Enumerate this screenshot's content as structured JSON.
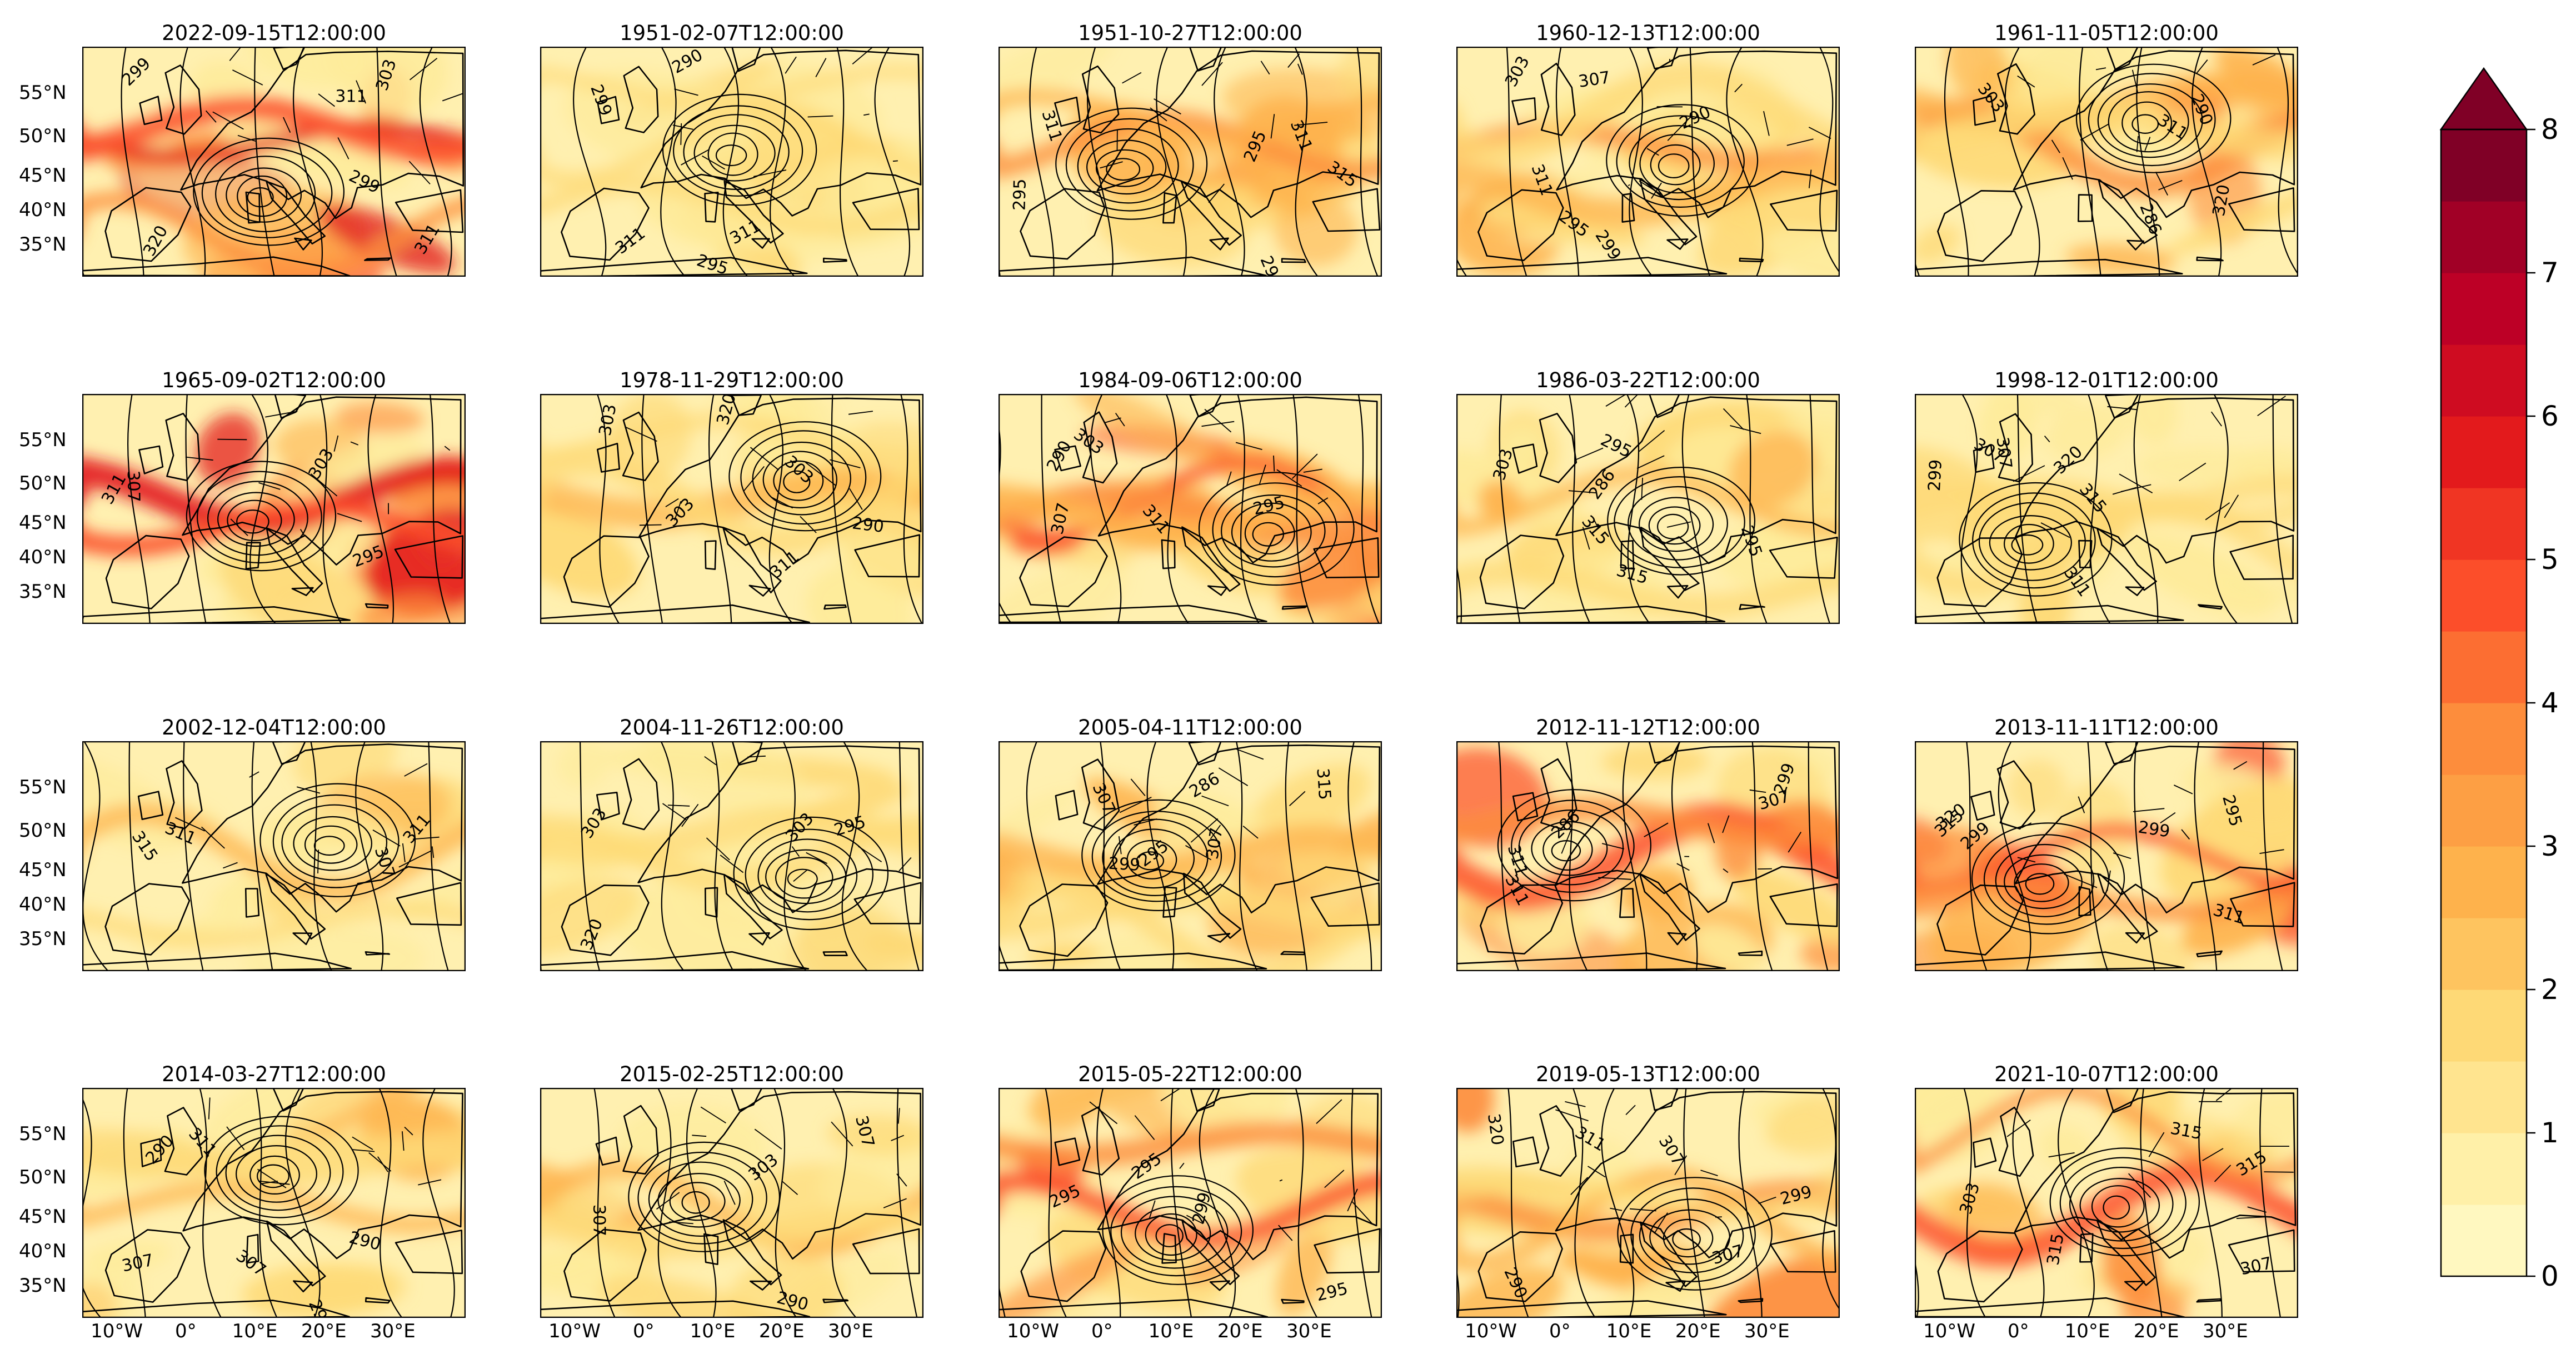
{
  "figure": {
    "panels": [
      {
        "title": "2022-09-15T12:00:00",
        "intensity": 0.85
      },
      {
        "title": "1951-02-07T12:00:00",
        "intensity": 0.35
      },
      {
        "title": "1951-10-27T12:00:00",
        "intensity": 0.6
      },
      {
        "title": "1960-12-13T12:00:00",
        "intensity": 0.5
      },
      {
        "title": "1961-11-05T12:00:00",
        "intensity": 0.55
      },
      {
        "title": "1965-09-02T12:00:00",
        "intensity": 0.85
      },
      {
        "title": "1978-11-29T12:00:00",
        "intensity": 0.4
      },
      {
        "title": "1984-09-06T12:00:00",
        "intensity": 0.75
      },
      {
        "title": "1986-03-22T12:00:00",
        "intensity": 0.4
      },
      {
        "title": "1998-12-01T12:00:00",
        "intensity": 0.3
      },
      {
        "title": "2002-12-04T12:00:00",
        "intensity": 0.4
      },
      {
        "title": "2004-11-26T12:00:00",
        "intensity": 0.35
      },
      {
        "title": "2005-04-11T12:00:00",
        "intensity": 0.45
      },
      {
        "title": "2012-11-12T12:00:00",
        "intensity": 0.65
      },
      {
        "title": "2013-11-11T12:00:00",
        "intensity": 0.75
      },
      {
        "title": "2014-03-27T12:00:00",
        "intensity": 0.45
      },
      {
        "title": "2015-02-25T12:00:00",
        "intensity": 0.45
      },
      {
        "title": "2015-05-22T12:00:00",
        "intensity": 0.7
      },
      {
        "title": "2019-05-13T12:00:00",
        "intensity": 0.55
      },
      {
        "title": "2021-10-07T12:00:00",
        "intensity": 0.65
      }
    ],
    "lat_ticks": [
      "55°N",
      "50°N",
      "45°N",
      "40°N",
      "35°N"
    ],
    "lon_ticks": [
      "10°W",
      "0°",
      "10°E",
      "20°E",
      "30°E"
    ],
    "contour_label_samples": [
      "295",
      "299",
      "303",
      "307",
      "311",
      "315",
      "320",
      "286",
      "290"
    ],
    "colorbar": {
      "min": 0,
      "max": 8,
      "step": 0.5,
      "extend": "max",
      "ticks": [
        "0",
        "1",
        "2",
        "3",
        "4",
        "5",
        "6",
        "7",
        "8"
      ],
      "colormap": "YlOrRd",
      "colors": [
        "#fff8c0",
        "#fff0a8",
        "#ffe48f",
        "#fed976",
        "#fec45f",
        "#feb24c",
        "#fd9f44",
        "#fd8d3c",
        "#fc6e32",
        "#fc4e2a",
        "#f03523",
        "#e31a1c",
        "#cf0c21",
        "#bd0026",
        "#a10026",
        "#800026"
      ],
      "extend_color": "#800026"
    }
  }
}
